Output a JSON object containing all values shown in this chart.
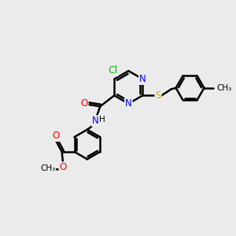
{
  "bg_color": "#ebebeb",
  "bond_color": "#000000",
  "bond_width": 1.8,
  "atom_colors": {
    "N": "#0000ff",
    "O": "#ff0000",
    "S": "#ccaa00",
    "Cl": "#00bb00",
    "C": "#000000",
    "H": "#000000"
  },
  "font_size": 8.5
}
